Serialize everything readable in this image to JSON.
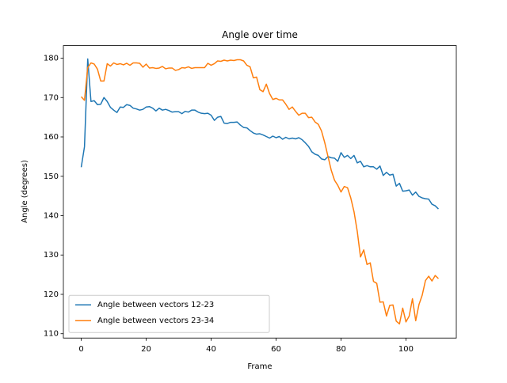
{
  "chart_data": {
    "type": "line",
    "title": "Angle over time",
    "x_label": "Frame",
    "y_label": "Angle (degrees)",
    "x": [
      0,
      1,
      2,
      3,
      4,
      5,
      6,
      7,
      8,
      9,
      10,
      11,
      12,
      13,
      14,
      15,
      16,
      17,
      18,
      19,
      20,
      21,
      22,
      23,
      24,
      25,
      26,
      27,
      28,
      29,
      30,
      31,
      32,
      33,
      34,
      35,
      36,
      37,
      38,
      39,
      40,
      41,
      42,
      43,
      44,
      45,
      46,
      47,
      48,
      49,
      50,
      51,
      52,
      53,
      54,
      55,
      56,
      57,
      58,
      59,
      60,
      61,
      62,
      63,
      64,
      65,
      66,
      67,
      68,
      69,
      70,
      71,
      72,
      73,
      74,
      75,
      76,
      77,
      78,
      79,
      80,
      81,
      82,
      83,
      84,
      85,
      86,
      87,
      88,
      89,
      90,
      91,
      92,
      93,
      94,
      95,
      96,
      97,
      98,
      99,
      100,
      101,
      102,
      103,
      104,
      105,
      106,
      107,
      108,
      109,
      110
    ],
    "series": [
      {
        "name": "Angle between vectors 12-23",
        "color": "#1f77b4",
        "values": [
          152.3,
          157.5,
          179.8,
          169,
          169.2,
          168.2,
          168.3,
          170,
          169,
          167.5,
          166.8,
          166.2,
          167.6,
          167.5,
          168.2,
          168,
          167.3,
          167.1,
          166.8,
          167,
          167.6,
          167.7,
          167.3,
          166.6,
          167.3,
          166.8,
          167,
          166.7,
          166.3,
          166.4,
          166.4,
          165.9,
          166.5,
          166.3,
          166.8,
          166.8,
          166.3,
          166,
          165.9,
          166,
          165.5,
          164.2,
          165,
          165.2,
          163.5,
          163.4,
          163.7,
          163.7,
          163.8,
          163,
          162.4,
          162.3,
          161.6,
          161,
          160.7,
          160.8,
          160.5,
          160.1,
          159.7,
          160.2,
          159.8,
          160.1,
          159.4,
          159.9,
          159.5,
          159.7,
          159.5,
          159.8,
          159.3,
          158.5,
          157.6,
          156.2,
          155.6,
          155.3,
          154.4,
          154.2,
          155,
          154.7,
          154.6,
          153.8,
          156,
          154.8,
          155.3,
          154.5,
          155.3,
          153.4,
          153.8,
          152.4,
          152.7,
          152.4,
          152.4,
          151.8,
          152.6,
          150.2,
          151,
          150.3,
          150.5,
          147.5,
          148.2,
          146.2,
          146.3,
          146.5,
          145.2,
          146,
          144.9,
          144.5,
          144.3,
          144.2,
          142.9,
          142.5,
          141.7
        ]
      },
      {
        "name": "Angle between vectors 23-34",
        "color": "#ff7f0e",
        "values": [
          170.2,
          169.3,
          177.6,
          178.8,
          178.5,
          177.2,
          174.2,
          174.2,
          178.6,
          178,
          178.8,
          178.4,
          178.6,
          178.3,
          178.7,
          178.2,
          178.8,
          178.8,
          178.7,
          177.7,
          178.5,
          177.5,
          177.6,
          177.4,
          177.5,
          177.9,
          177.3,
          177.5,
          177.5,
          176.9,
          177.1,
          177.6,
          177.5,
          177.8,
          177.4,
          177.6,
          177.6,
          177.6,
          177.6,
          178.7,
          178.2,
          178.6,
          179.3,
          179.2,
          179.5,
          179.3,
          179.5,
          179.4,
          179.6,
          179.6,
          179.3,
          178.2,
          177.8,
          175,
          175.2,
          172,
          171.5,
          173.4,
          171,
          169.5,
          169.8,
          169.4,
          169.4,
          168.3,
          167,
          167.6,
          166.5,
          165.5,
          166,
          166,
          164.9,
          165,
          163.8,
          163.2,
          161.5,
          158.5,
          155,
          151.5,
          149,
          147.7,
          146,
          147.4,
          147.1,
          144.5,
          141,
          136,
          129.5,
          131.3,
          127.6,
          128,
          123.3,
          122.8,
          118,
          118.1,
          114.5,
          117.2,
          117.3,
          113.2,
          112.5,
          116.5,
          113,
          114.5,
          118.9,
          113.3,
          117.4,
          119.8,
          123.5,
          124.6,
          123.4,
          124.8,
          124
        ]
      }
    ],
    "xlim": [
      -5.5,
      115.5
    ],
    "ylim": [
      108.9,
      183.2
    ],
    "xticks": [
      0,
      20,
      40,
      60,
      80,
      100
    ],
    "yticks": [
      110,
      120,
      130,
      140,
      150,
      160,
      170,
      180
    ],
    "legend": "lower left"
  }
}
